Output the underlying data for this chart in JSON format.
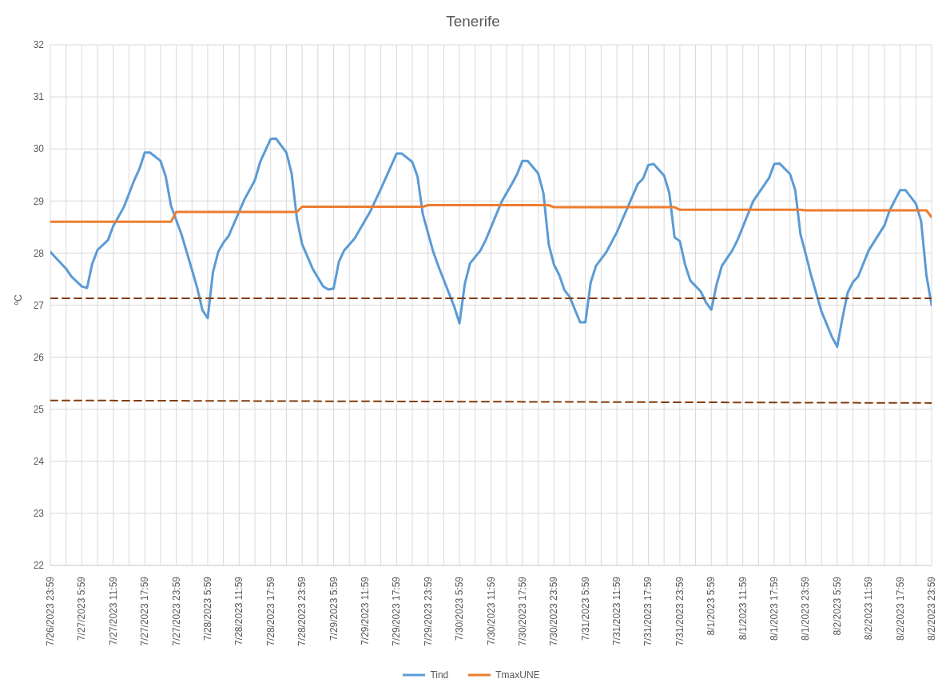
{
  "chart_data": {
    "type": "line",
    "title": "Tenerife",
    "ylabel": "ºC",
    "ylim": [
      22,
      32
    ],
    "yticks": [
      22,
      23,
      24,
      25,
      26,
      27,
      28,
      29,
      30,
      31,
      32
    ],
    "xlim": [
      "2023-07-26T23:59",
      "2023-08-02T23:59"
    ],
    "xticks": [
      {
        "value": "2023-07-26T23:59",
        "label": "7/26/2023 23:59"
      },
      {
        "value": "2023-07-27T02:59",
        "label": null
      },
      {
        "value": "2023-07-27T05:59",
        "label": "7/27/2023 5:59"
      },
      {
        "value": "2023-07-27T08:59",
        "label": null
      },
      {
        "value": "2023-07-27T11:59",
        "label": "7/27/2023 11:59"
      },
      {
        "value": "2023-07-27T14:59",
        "label": null
      },
      {
        "value": "2023-07-27T17:59",
        "label": "7/27/2023 17:59"
      },
      {
        "value": "2023-07-27T20:59",
        "label": null
      },
      {
        "value": "2023-07-27T23:59",
        "label": "7/27/2023 23:59"
      },
      {
        "value": "2023-07-28T02:59",
        "label": null
      },
      {
        "value": "2023-07-28T05:59",
        "label": "7/28/2023 5:59"
      },
      {
        "value": "2023-07-28T08:59",
        "label": null
      },
      {
        "value": "2023-07-28T11:59",
        "label": "7/28/2023 11:59"
      },
      {
        "value": "2023-07-28T14:59",
        "label": null
      },
      {
        "value": "2023-07-28T17:59",
        "label": "7/28/2023 17:59"
      },
      {
        "value": "2023-07-28T20:59",
        "label": null
      },
      {
        "value": "2023-07-28T23:59",
        "label": "7/28/2023 23:59"
      },
      {
        "value": "2023-07-29T02:59",
        "label": null
      },
      {
        "value": "2023-07-29T05:59",
        "label": "7/29/2023 5:59"
      },
      {
        "value": "2023-07-29T08:59",
        "label": null
      },
      {
        "value": "2023-07-29T11:59",
        "label": "7/29/2023 11:59"
      },
      {
        "value": "2023-07-29T14:59",
        "label": null
      },
      {
        "value": "2023-07-29T17:59",
        "label": "7/29/2023 17:59"
      },
      {
        "value": "2023-07-29T20:59",
        "label": null
      },
      {
        "value": "2023-07-29T23:59",
        "label": "7/29/2023 23:59"
      },
      {
        "value": "2023-07-30T02:59",
        "label": null
      },
      {
        "value": "2023-07-30T05:59",
        "label": "7/30/2023 5:59"
      },
      {
        "value": "2023-07-30T08:59",
        "label": null
      },
      {
        "value": "2023-07-30T11:59",
        "label": "7/30/2023 11:59"
      },
      {
        "value": "2023-07-30T14:59",
        "label": null
      },
      {
        "value": "2023-07-30T17:59",
        "label": "7/30/2023 17:59"
      },
      {
        "value": "2023-07-30T20:59",
        "label": null
      },
      {
        "value": "2023-07-30T23:59",
        "label": "7/30/2023 23:59"
      },
      {
        "value": "2023-07-31T02:59",
        "label": null
      },
      {
        "value": "2023-07-31T05:59",
        "label": "7/31/2023 5:59"
      },
      {
        "value": "2023-07-31T08:59",
        "label": null
      },
      {
        "value": "2023-07-31T11:59",
        "label": "7/31/2023 11:59"
      },
      {
        "value": "2023-07-31T14:59",
        "label": null
      },
      {
        "value": "2023-07-31T17:59",
        "label": "7/31/2023 17:59"
      },
      {
        "value": "2023-07-31T20:59",
        "label": null
      },
      {
        "value": "2023-07-31T23:59",
        "label": "7/31/2023 23:59"
      },
      {
        "value": "2023-08-01T02:59",
        "label": null
      },
      {
        "value": "2023-08-01T05:59",
        "label": "8/1/2023 5:59"
      },
      {
        "value": "2023-08-01T08:59",
        "label": null
      },
      {
        "value": "2023-08-01T11:59",
        "label": "8/1/2023 11:59"
      },
      {
        "value": "2023-08-01T14:59",
        "label": null
      },
      {
        "value": "2023-08-01T17:59",
        "label": "8/1/2023 17:59"
      },
      {
        "value": "2023-08-01T20:59",
        "label": null
      },
      {
        "value": "2023-08-01T23:59",
        "label": "8/1/2023 23:59"
      },
      {
        "value": "2023-08-02T02:59",
        "label": null
      },
      {
        "value": "2023-08-02T05:59",
        "label": "8/2/2023 5:59"
      },
      {
        "value": "2023-08-02T08:59",
        "label": null
      },
      {
        "value": "2023-08-02T11:59",
        "label": "8/2/2023 11:59"
      },
      {
        "value": "2023-08-02T14:59",
        "label": null
      },
      {
        "value": "2023-08-02T17:59",
        "label": "8/2/2023 17:59"
      },
      {
        "value": "2023-08-02T20:59",
        "label": null
      },
      {
        "value": "2023-08-02T23:59",
        "label": "8/2/2023 23:59"
      }
    ],
    "grid": true,
    "legend": "bottom",
    "marker": "none",
    "line_style": "solid",
    "series": [
      {
        "name": "Tind",
        "color": "#5b9bd5",
        "x": [
          "2023-07-26T23:59",
          "2023-07-27T02:59",
          "2023-07-27T03:59",
          "2023-07-27T05:59",
          "2023-07-27T06:59",
          "2023-07-27T07:59",
          "2023-07-27T08:59",
          "2023-07-27T10:59",
          "2023-07-27T11:59",
          "2023-07-27T13:59",
          "2023-07-27T15:59",
          "2023-07-27T16:59",
          "2023-07-27T17:59",
          "2023-07-27T18:59",
          "2023-07-27T20:59",
          "2023-07-27T21:59",
          "2023-07-27T22:59",
          "2023-07-28T00:59",
          "2023-07-28T02:59",
          "2023-07-28T03:59",
          "2023-07-28T04:59",
          "2023-07-28T05:59",
          "2023-07-28T06:59",
          "2023-07-28T07:59",
          "2023-07-28T08:59",
          "2023-07-28T09:59",
          "2023-07-28T12:59",
          "2023-07-28T14:59",
          "2023-07-28T15:59",
          "2023-07-28T17:59",
          "2023-07-28T18:59",
          "2023-07-28T20:59",
          "2023-07-28T21:59",
          "2023-07-28T22:59",
          "2023-07-28T23:59",
          "2023-07-29T01:59",
          "2023-07-29T03:59",
          "2023-07-29T04:59",
          "2023-07-29T05:59",
          "2023-07-29T06:59",
          "2023-07-29T07:59",
          "2023-07-29T09:59",
          "2023-07-29T12:59",
          "2023-07-29T14:59",
          "2023-07-29T17:59",
          "2023-07-29T18:59",
          "2023-07-29T20:59",
          "2023-07-29T21:59",
          "2023-07-29T22:59",
          "2023-07-30T00:59",
          "2023-07-30T01:59",
          "2023-07-30T04:59",
          "2023-07-30T05:59",
          "2023-07-30T06:59",
          "2023-07-30T07:59",
          "2023-07-30T09:59",
          "2023-07-30T10:59",
          "2023-07-30T13:59",
          "2023-07-30T15:59",
          "2023-07-30T16:59",
          "2023-07-30T17:59",
          "2023-07-30T18:59",
          "2023-07-30T20:59",
          "2023-07-30T21:59",
          "2023-07-30T22:59",
          "2023-07-30T23:59",
          "2023-07-31T00:59",
          "2023-07-31T01:59",
          "2023-07-31T02:59",
          "2023-07-31T04:59",
          "2023-07-31T05:59",
          "2023-07-31T06:59",
          "2023-07-31T07:59",
          "2023-07-31T09:59",
          "2023-07-31T11:59",
          "2023-07-31T15:59",
          "2023-07-31T16:59",
          "2023-07-31T17:59",
          "2023-07-31T18:59",
          "2023-07-31T20:59",
          "2023-07-31T21:59",
          "2023-07-31T22:59",
          "2023-07-31T23:59",
          "2023-08-01T00:59",
          "2023-08-01T01:59",
          "2023-08-01T03:59",
          "2023-08-01T04:59",
          "2023-08-01T05:59",
          "2023-08-01T06:59",
          "2023-08-01T07:59",
          "2023-08-01T09:59",
          "2023-08-01T10:59",
          "2023-08-01T13:59",
          "2023-08-01T16:59",
          "2023-08-01T17:59",
          "2023-08-01T18:59",
          "2023-08-01T20:59",
          "2023-08-01T21:59",
          "2023-08-01T22:59",
          "2023-08-01T23:59",
          "2023-08-02T00:59",
          "2023-08-02T02:59",
          "2023-08-02T04:59",
          "2023-08-02T05:59",
          "2023-08-02T06:59",
          "2023-08-02T07:59",
          "2023-08-02T08:59",
          "2023-08-02T09:59",
          "2023-08-02T11:59",
          "2023-08-02T14:59",
          "2023-08-02T15:59",
          "2023-08-02T17:59",
          "2023-08-02T18:59",
          "2023-08-02T20:59",
          "2023-08-02T21:59",
          "2023-08-02T22:59",
          "2023-08-02T23:59"
        ],
        "values": [
          28.02,
          27.7,
          27.55,
          27.36,
          27.33,
          27.8,
          28.06,
          28.25,
          28.52,
          28.88,
          29.4,
          29.62,
          29.93,
          29.93,
          29.77,
          29.47,
          28.91,
          28.36,
          27.68,
          27.33,
          26.9,
          26.75,
          27.63,
          28.02,
          28.2,
          28.33,
          29.03,
          29.4,
          29.75,
          30.19,
          30.2,
          29.93,
          29.53,
          28.66,
          28.17,
          27.7,
          27.36,
          27.3,
          27.32,
          27.83,
          28.05,
          28.28,
          28.8,
          29.23,
          29.91,
          29.91,
          29.75,
          29.47,
          28.75,
          28.02,
          27.74,
          26.97,
          26.65,
          27.4,
          27.8,
          28.05,
          28.25,
          28.98,
          29.33,
          29.52,
          29.77,
          29.77,
          29.53,
          29.15,
          28.17,
          27.78,
          27.58,
          27.29,
          27.16,
          26.67,
          26.67,
          27.43,
          27.75,
          28.02,
          28.4,
          29.33,
          29.43,
          29.69,
          29.71,
          29.49,
          29.15,
          28.3,
          28.23,
          27.78,
          27.47,
          27.26,
          27.05,
          26.91,
          27.39,
          27.75,
          28.05,
          28.25,
          29.0,
          29.44,
          29.71,
          29.72,
          29.52,
          29.21,
          28.36,
          27.98,
          27.58,
          26.88,
          26.39,
          26.2,
          26.75,
          27.24,
          27.44,
          27.55,
          28.05,
          28.53,
          28.82,
          29.21,
          29.21,
          28.95,
          28.61,
          27.58,
          27.0
        ]
      },
      {
        "name": "TmaxUNE",
        "color": "#ed7d31",
        "x": [
          "2023-07-26T23:59",
          "2023-07-27T22:59",
          "2023-07-27T23:59",
          "2023-07-28T22:59",
          "2023-07-28T23:59",
          "2023-07-29T22:59",
          "2023-07-29T23:59",
          "2023-07-30T22:59",
          "2023-07-30T23:59",
          "2023-07-31T22:59",
          "2023-07-31T23:59",
          "2023-08-01T22:59",
          "2023-08-01T23:59",
          "2023-08-02T22:59",
          "2023-08-02T23:59"
        ],
        "values": [
          28.6,
          28.6,
          28.79,
          28.79,
          28.89,
          28.89,
          28.92,
          28.92,
          28.88,
          28.88,
          28.83,
          28.83,
          28.82,
          28.82,
          28.69
        ]
      },
      {
        "color": "#843c0c",
        "line_style": "dashed",
        "x": [
          "2023-07-26T23:59",
          "2023-08-02T23:59"
        ],
        "values": [
          27.13,
          27.13
        ]
      },
      {
        "color": "#843c0c",
        "line_style": "dashed",
        "x": [
          "2023-07-26T23:59",
          "2023-08-02T23:59"
        ],
        "values": [
          25.17,
          25.12
        ]
      }
    ]
  }
}
